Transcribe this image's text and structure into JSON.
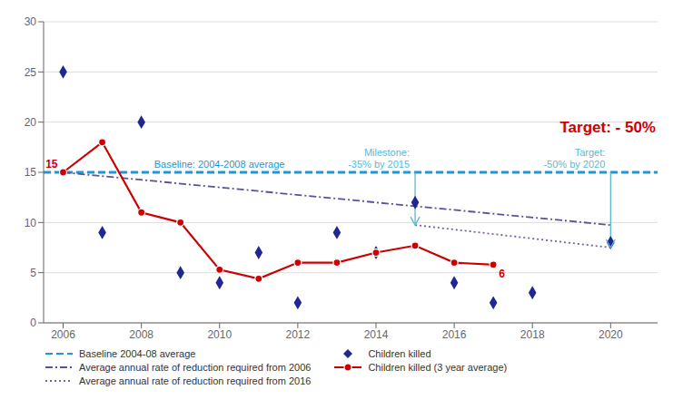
{
  "chart_data": {
    "type": "line",
    "series": [
      {
        "name": "Baseline 2004-08 average",
        "type": "hline",
        "values": [
          15
        ],
        "color": "#1E97D4",
        "line_style": "dashed"
      },
      {
        "name": "Average annual rate of reduction required from 2006",
        "type": "line",
        "x": [
          2006,
          2020
        ],
        "values": [
          15,
          9.75
        ],
        "color": "#5C4F9E",
        "line_style": "dashdot"
      },
      {
        "name": "Average annual rate of reduction required from 2016",
        "type": "line",
        "x": [
          2015,
          2020
        ],
        "values": [
          9.75,
          7.5
        ],
        "color": "#7B5EA7",
        "line_style": "dotted"
      },
      {
        "name": "Children killed",
        "type": "scatter",
        "x": [
          2006,
          2007,
          2008,
          2009,
          2010,
          2011,
          2012,
          2013,
          2014,
          2015,
          2016,
          2017,
          2018,
          2020
        ],
        "values": [
          25,
          9,
          20,
          5,
          4,
          7,
          2,
          9,
          7,
          12,
          4,
          2,
          3,
          8
        ],
        "color": "#1F2792",
        "marker": "diamond"
      },
      {
        "name": "Children killed (3 year average)",
        "type": "line",
        "x": [
          2006,
          2007,
          2008,
          2009,
          2010,
          2011,
          2012,
          2013,
          2014,
          2015,
          2016,
          2017
        ],
        "values": [
          15,
          18,
          11,
          10,
          5.3,
          4.4,
          6,
          6,
          7,
          7.7,
          6,
          5.8
        ],
        "value_labels": [
          "15",
          null,
          null,
          null,
          null,
          null,
          null,
          null,
          null,
          null,
          null,
          "6"
        ],
        "color": "#CC0000",
        "marker": "circle",
        "line_style": "solid"
      }
    ],
    "annotations": [
      {
        "text": "Baseline: 2004-2008 average",
        "y": 15,
        "color": "#1E97D4"
      },
      {
        "text": "Milestone:\n-35% by 2015",
        "x": 2015,
        "y_from": 15,
        "y_to": 9.75,
        "color": "#5BB8D4"
      },
      {
        "text": "Target:\n-50% by 2020",
        "x": 2020,
        "y_from": 15,
        "y_to": 7.5,
        "color": "#5BB8D4"
      },
      {
        "text": "Target: - 50%",
        "color": "#CC0000"
      }
    ],
    "xlim": [
      2005.5,
      2021.2
    ],
    "xticks": [
      2006,
      2008,
      2010,
      2012,
      2014,
      2016,
      2018,
      2020
    ],
    "ylim": [
      0,
      30
    ],
    "yticks": [
      0,
      5,
      10,
      15,
      20,
      25,
      30
    ],
    "grid": true,
    "legend": "bottom"
  }
}
